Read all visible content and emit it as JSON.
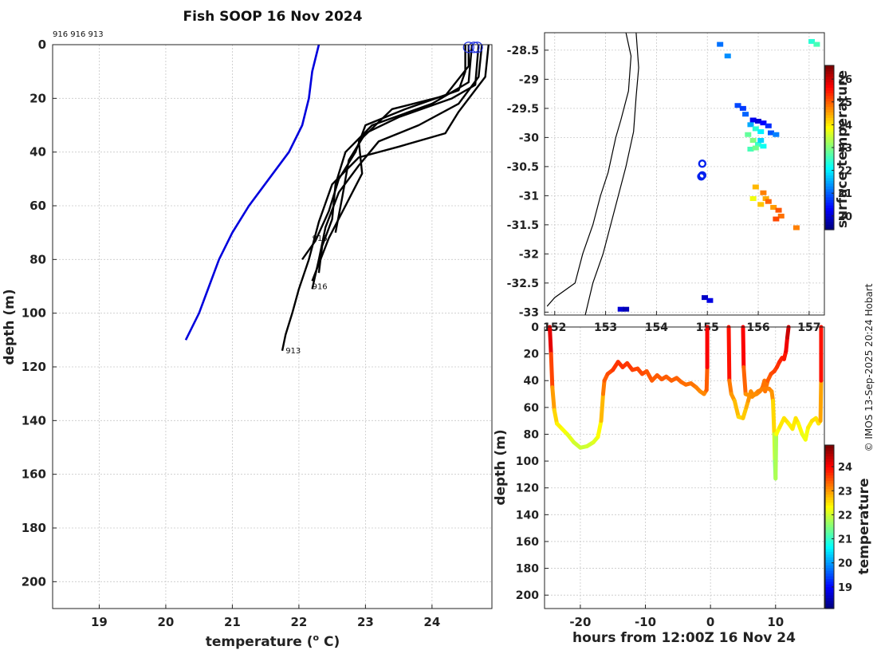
{
  "title": "Fish SOOP 16 Nov 2024",
  "credit": "© IMOS 13-Sep-2025 20:24 Hobart",
  "chart_data": [
    {
      "type": "line",
      "name": "temperature-depth profiles",
      "top_label": "916 916 913",
      "xlabel": "temperature (",
      "xlabel_sup": "o",
      "xlabel_unit": " C)",
      "ylabel": "depth (m)",
      "xlim": [
        18.3,
        24.9
      ],
      "ylim": [
        210,
        0
      ],
      "xticks": [
        19,
        20,
        21,
        22,
        23,
        24
      ],
      "yticks": [
        0,
        20,
        40,
        60,
        80,
        100,
        120,
        140,
        160,
        180,
        200
      ],
      "climatology": {
        "color": "#0000dd",
        "points": [
          [
            22.3,
            0
          ],
          [
            22.2,
            10
          ],
          [
            22.15,
            20
          ],
          [
            22.05,
            30
          ],
          [
            21.85,
            40
          ],
          [
            21.55,
            50
          ],
          [
            21.25,
            60
          ],
          [
            21.0,
            70
          ],
          [
            20.8,
            80
          ],
          [
            20.65,
            90
          ],
          [
            20.5,
            100
          ],
          [
            20.3,
            110
          ]
        ]
      },
      "series": [
        {
          "name": "916",
          "color": "#000000",
          "label_at": [
            22.2,
            73
          ],
          "points": [
            [
              24.5,
              0
            ],
            [
              24.5,
              10
            ],
            [
              24.4,
              17
            ],
            [
              23.6,
              24
            ],
            [
              23.0,
              30
            ],
            [
              22.85,
              40
            ],
            [
              22.6,
              50
            ],
            [
              22.45,
              62
            ],
            [
              22.25,
              73
            ],
            [
              22.05,
              80
            ]
          ]
        },
        {
          "name": "916",
          "color": "#000000",
          "label_at": [
            22.2,
            91
          ],
          "points": [
            [
              24.75,
              0
            ],
            [
              24.7,
              12
            ],
            [
              24.4,
              22
            ],
            [
              23.8,
              30
            ],
            [
              23.2,
              36
            ],
            [
              22.9,
              45
            ],
            [
              22.6,
              55
            ],
            [
              22.4,
              68
            ],
            [
              22.3,
              80
            ],
            [
              22.2,
              91
            ]
          ]
        },
        {
          "name": "913",
          "color": "#000000",
          "label_at": [
            21.8,
            115
          ],
          "points": [
            [
              24.85,
              0
            ],
            [
              24.8,
              12
            ],
            [
              24.4,
              25
            ],
            [
              24.2,
              33
            ],
            [
              23.5,
              38
            ],
            [
              22.9,
              42
            ],
            [
              22.5,
              52
            ],
            [
              22.3,
              66
            ],
            [
              22.15,
              80
            ],
            [
              22.0,
              91
            ],
            [
              21.9,
              100
            ],
            [
              21.8,
              108
            ],
            [
              21.75,
              114
            ]
          ]
        },
        {
          "name": "",
          "color": "#000000",
          "points": [
            [
              24.6,
              0
            ],
            [
              24.55,
              14
            ],
            [
              24.0,
              22
            ],
            [
              23.1,
              30
            ],
            [
              22.7,
              40
            ],
            [
              22.55,
              52
            ],
            [
              22.5,
              65
            ],
            [
              22.35,
              75
            ],
            [
              22.3,
              85
            ]
          ]
        },
        {
          "name": "",
          "color": "#000000",
          "points": [
            [
              24.7,
              0
            ],
            [
              24.65,
              15
            ],
            [
              24.3,
              20
            ],
            [
              23.5,
              27
            ],
            [
              23.0,
              33
            ],
            [
              22.75,
              43
            ],
            [
              22.65,
              57
            ],
            [
              22.55,
              70
            ]
          ]
        },
        {
          "name": "",
          "color": "#000000",
          "points": [
            [
              24.55,
              0
            ],
            [
              24.55,
              8
            ],
            [
              24.2,
              19
            ],
            [
              23.4,
              24
            ],
            [
              22.9,
              36
            ],
            [
              22.95,
              48
            ],
            [
              22.7,
              60
            ],
            [
              22.45,
              72
            ],
            [
              22.2,
              88
            ]
          ]
        }
      ],
      "markers": [
        [
          24.55,
          1
        ],
        [
          24.63,
          1
        ],
        [
          24.68,
          1
        ]
      ]
    },
    {
      "type": "heatmap",
      "name": "surface temperature map",
      "xlim": [
        151.8,
        157.3
      ],
      "ylim": [
        -33.05,
        -28.2
      ],
      "xticks": [
        152,
        153,
        154,
        155,
        156,
        157
      ],
      "xtick_labels": [
        "152",
        "153",
        "154",
        "155",
        "156",
        "157"
      ],
      "yticks": [
        -28.5,
        -29,
        -29.5,
        -30,
        -30.5,
        -31,
        -31.5,
        -32,
        -32.5,
        -33
      ],
      "ytick_labels": [
        "-28.5",
        "-29",
        "-29.5",
        "-30",
        "-30.5",
        "-31",
        "-31.5",
        "-32",
        "-32.5",
        "-33"
      ],
      "colorbar_label": "surface temperature",
      "colorbar_range": [
        19.4,
        26.6
      ],
      "colorbar_ticks": [
        20,
        21,
        22,
        23,
        24,
        25,
        26
      ],
      "coast": [
        [
          153.4,
          -28.2
        ],
        [
          153.5,
          -28.6
        ],
        [
          153.45,
          -29.2
        ],
        [
          153.3,
          -29.7
        ],
        [
          153.2,
          -30.0
        ],
        [
          153.05,
          -30.6
        ],
        [
          152.9,
          -31.0
        ],
        [
          152.75,
          -31.5
        ],
        [
          152.55,
          -32.0
        ],
        [
          152.4,
          -32.5
        ],
        [
          152.0,
          -32.75
        ],
        [
          151.85,
          -32.9
        ]
      ],
      "shelf": [
        [
          153.6,
          -28.2
        ],
        [
          153.65,
          -28.8
        ],
        [
          153.6,
          -29.3
        ],
        [
          153.55,
          -29.9
        ],
        [
          153.4,
          -30.5
        ],
        [
          153.25,
          -31.0
        ],
        [
          153.1,
          -31.5
        ],
        [
          152.95,
          -32.0
        ],
        [
          152.75,
          -32.5
        ],
        [
          152.6,
          -33.05
        ]
      ],
      "stations": [
        [
          154.9,
          -30.45
        ],
        [
          154.9,
          -30.65
        ],
        [
          154.88,
          -30.67
        ]
      ],
      "pixels": [
        [
          155.6,
          -29.45,
          20.8
        ],
        [
          155.7,
          -29.5,
          20.7
        ],
        [
          155.75,
          -29.6,
          21.0
        ],
        [
          155.9,
          -29.7,
          20.2
        ],
        [
          156.0,
          -29.72,
          20.0
        ],
        [
          156.1,
          -29.75,
          20.3
        ],
        [
          156.2,
          -29.8,
          20.6
        ],
        [
          155.85,
          -29.78,
          21.5
        ],
        [
          155.95,
          -29.85,
          22.4
        ],
        [
          156.05,
          -29.9,
          22.0
        ],
        [
          155.8,
          -29.95,
          22.8
        ],
        [
          155.9,
          -30.05,
          23.0
        ],
        [
          156.0,
          -30.12,
          22.5
        ],
        [
          156.1,
          -30.15,
          22.2
        ],
        [
          155.85,
          -30.2,
          22.6
        ],
        [
          155.95,
          -30.18,
          22.9
        ],
        [
          156.05,
          -30.05,
          21.8
        ],
        [
          156.25,
          -29.92,
          20.9
        ],
        [
          156.35,
          -29.95,
          21.2
        ],
        [
          155.95,
          -30.85,
          24.4
        ],
        [
          156.1,
          -30.95,
          24.8
        ],
        [
          156.15,
          -31.05,
          24.5
        ],
        [
          156.2,
          -31.1,
          25.0
        ],
        [
          156.3,
          -31.2,
          24.6
        ],
        [
          156.4,
          -31.25,
          25.1
        ],
        [
          156.45,
          -31.35,
          24.9
        ],
        [
          156.35,
          -31.4,
          25.2
        ],
        [
          156.75,
          -31.55,
          24.8
        ],
        [
          156.05,
          -31.15,
          24.3
        ],
        [
          155.9,
          -31.05,
          23.8
        ],
        [
          157.05,
          -28.35,
          22.4
        ],
        [
          157.15,
          -28.4,
          22.6
        ],
        [
          155.4,
          -28.6,
          21.3
        ],
        [
          155.25,
          -28.4,
          21.1
        ],
        [
          154.95,
          -32.75,
          19.9
        ],
        [
          155.05,
          -32.8,
          20.1
        ],
        [
          153.3,
          -32.95,
          20.0
        ],
        [
          153.4,
          -32.95,
          19.8
        ]
      ]
    },
    {
      "type": "scatter",
      "name": "depth vs time",
      "xlabel": "hours from 12:00Z 16 Nov 24",
      "ylabel": "depth (m)",
      "xlim": [
        -25.5,
        17.5
      ],
      "ylim": [
        210,
        0
      ],
      "xticks": [
        -20,
        -10,
        0,
        10
      ],
      "yticks": [
        0,
        20,
        40,
        60,
        80,
        100,
        120,
        140,
        160,
        180,
        200
      ],
      "yticklabels": [
        "0",
        "20",
        "40",
        "60",
        "80",
        "100",
        "120",
        "140",
        "160",
        "180",
        "200"
      ],
      "colorbar_label": "temperature",
      "colorbar_range": [
        18.1,
        24.9
      ],
      "colorbar_ticks": [
        19,
        20,
        21,
        22,
        23,
        24
      ],
      "track": [
        [
          -24.7,
          0
        ],
        [
          -24.5,
          20
        ],
        [
          -24.3,
          45
        ],
        [
          -24.0,
          62
        ],
        [
          -23.6,
          72
        ],
        [
          -22.8,
          76
        ],
        [
          -22.0,
          80
        ],
        [
          -21.0,
          86
        ],
        [
          -20.0,
          90
        ],
        [
          -19.0,
          89
        ],
        [
          -18.0,
          86
        ],
        [
          -17.3,
          82
        ],
        [
          -16.8,
          70
        ],
        [
          -16.5,
          50
        ],
        [
          -16.3,
          40
        ],
        [
          -15.8,
          35
        ],
        [
          -15.0,
          32
        ],
        [
          -14.2,
          26
        ],
        [
          -13.5,
          30
        ],
        [
          -12.8,
          27
        ],
        [
          -12.0,
          32
        ],
        [
          -11.2,
          31
        ],
        [
          -10.5,
          35
        ],
        [
          -9.8,
          33
        ],
        [
          -9.0,
          40
        ],
        [
          -8.2,
          36
        ],
        [
          -7.5,
          39
        ],
        [
          -6.8,
          37
        ],
        [
          -6.0,
          40
        ],
        [
          -5.2,
          38
        ],
        [
          -4.5,
          41
        ],
        [
          -3.8,
          43
        ],
        [
          -3.0,
          42
        ],
        [
          -2.2,
          45
        ],
        [
          -1.6,
          48
        ],
        [
          -1.0,
          50
        ],
        [
          -0.6,
          47
        ],
        [
          -0.5,
          30
        ],
        [
          -0.5,
          0
        ],
        [
          2.8,
          0
        ],
        [
          2.9,
          40
        ],
        [
          3.2,
          50
        ],
        [
          3.7,
          55
        ],
        [
          4.3,
          67
        ],
        [
          5.0,
          68
        ],
        [
          5.5,
          60
        ],
        [
          5.8,
          55
        ],
        [
          6.2,
          48
        ],
        [
          6.6,
          51
        ],
        [
          7.1,
          50
        ],
        [
          7.6,
          48
        ],
        [
          8.0,
          45
        ],
        [
          8.3,
          40
        ],
        [
          8.4,
          48
        ],
        [
          8.8,
          40
        ],
        [
          9.3,
          35
        ],
        [
          9.8,
          33
        ],
        [
          10.2,
          30
        ],
        [
          10.6,
          26
        ],
        [
          11.0,
          23
        ],
        [
          11.3,
          24
        ],
        [
          11.6,
          18
        ],
        [
          11.8,
          8
        ],
        [
          12.0,
          0
        ],
        [
          5.0,
          0
        ],
        [
          5.1,
          30
        ],
        [
          5.4,
          50
        ],
        [
          6.4,
          52
        ],
        [
          7.3,
          48
        ],
        [
          8.2,
          46
        ],
        [
          9.0,
          46
        ],
        [
          9.4,
          48
        ],
        [
          9.6,
          55
        ],
        [
          9.8,
          80
        ],
        [
          9.9,
          100
        ],
        [
          10.0,
          113
        ],
        [
          10.1,
          80
        ],
        [
          10.6,
          75
        ],
        [
          11.3,
          68
        ],
        [
          12.0,
          72
        ],
        [
          12.6,
          76
        ],
        [
          13.1,
          68
        ],
        [
          13.5,
          72
        ],
        [
          14.1,
          80
        ],
        [
          14.6,
          84
        ],
        [
          15.0,
          75
        ],
        [
          15.6,
          70
        ],
        [
          16.2,
          68
        ],
        [
          16.6,
          72
        ],
        [
          16.9,
          70
        ],
        [
          17.0,
          40
        ],
        [
          17.0,
          0
        ]
      ]
    }
  ]
}
